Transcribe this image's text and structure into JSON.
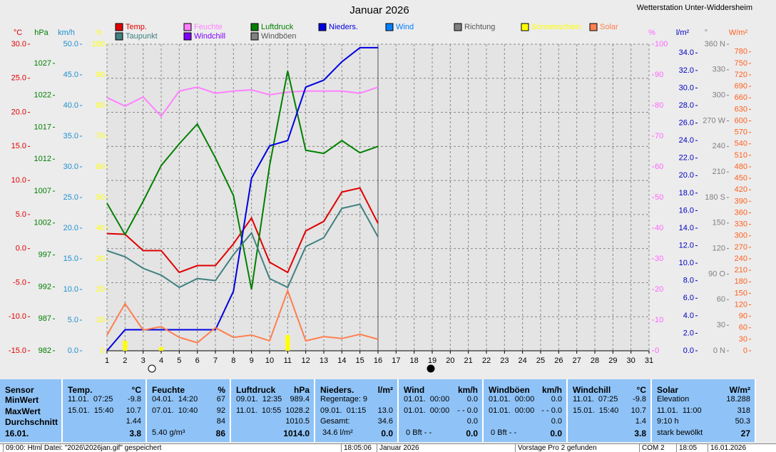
{
  "window": {
    "station": "Wetterstation Unter-Widdersheim"
  },
  "chart_data": {
    "type": "line",
    "title": "Januar 2026",
    "x": [
      1,
      2,
      3,
      4,
      5,
      6,
      7,
      8,
      9,
      10,
      11,
      12,
      13,
      14,
      15,
      16
    ],
    "xlim": [
      1,
      31
    ],
    "xticks": [
      1,
      2,
      3,
      4,
      5,
      6,
      7,
      8,
      9,
      10,
      11,
      12,
      13,
      14,
      15,
      16,
      17,
      18,
      19,
      20,
      21,
      22,
      23,
      24,
      25,
      26,
      27,
      28,
      29,
      30,
      31
    ],
    "grid": true,
    "axes": [
      {
        "label": "°C",
        "color": "#e00000",
        "ylim": [
          -15,
          30
        ],
        "yticks": [
          {
            "value": 30,
            "label": "30.0"
          },
          {
            "value": 25,
            "label": "25.0"
          },
          {
            "value": 20,
            "label": "20.0"
          },
          {
            "value": 15,
            "label": "15.0"
          },
          {
            "value": 10,
            "label": "10.0"
          },
          {
            "value": 5,
            "label": "5.0"
          },
          {
            "value": 0,
            "label": "0.0"
          },
          {
            "value": -5,
            "label": "-5.0"
          },
          {
            "value": -10,
            "label": "-10.0"
          },
          {
            "value": -15,
            "label": "-15.0"
          }
        ]
      },
      {
        "label": "hPa",
        "color": "#008000",
        "ylim": [
          982,
          1030
        ],
        "yticks": [
          982,
          987,
          992,
          997,
          1002,
          1007,
          1012,
          1017,
          1022,
          1027
        ]
      },
      {
        "label": "km/h",
        "color": "#1e8fd0",
        "ylim": [
          0,
          50
        ],
        "yticks": [
          {
            "value": 0,
            "label": "0.0"
          },
          {
            "value": 5,
            "label": "5.0"
          },
          {
            "value": 10,
            "label": "10.0"
          },
          {
            "value": 15,
            "label": "15.0"
          },
          {
            "value": 20,
            "label": "20.0"
          },
          {
            "value": 25,
            "label": "25.0"
          },
          {
            "value": 30,
            "label": "30.0"
          },
          {
            "value": 35,
            "label": "35.0"
          },
          {
            "value": 40,
            "label": "40.0"
          },
          {
            "value": 45,
            "label": "45.0"
          },
          {
            "value": 50,
            "label": "50.0"
          }
        ]
      },
      {
        "label": "h",
        "color": "#ffff00",
        "ylim": [
          0,
          100
        ],
        "yticks": [
          0,
          10,
          20,
          30,
          40,
          50,
          60,
          70,
          80,
          90,
          100
        ]
      },
      {
        "label": "%",
        "color": "#ff66ff",
        "ylim": [
          0,
          100
        ],
        "yticks": [
          0,
          10,
          20,
          30,
          40,
          50,
          60,
          70,
          80,
          90,
          100
        ]
      },
      {
        "label": "l/m²",
        "color": "#0000c0",
        "ylim": [
          0,
          35
        ],
        "yticks": [
          {
            "value": 0,
            "label": "0.0"
          },
          {
            "value": 2,
            "label": "2.0"
          },
          {
            "value": 4,
            "label": "4.0"
          },
          {
            "value": 6,
            "label": "6.0"
          },
          {
            "value": 8,
            "label": "8.0"
          },
          {
            "value": 10,
            "label": "10.0"
          },
          {
            "value": 12,
            "label": "12.0"
          },
          {
            "value": 14,
            "label": "14.0"
          },
          {
            "value": 16,
            "label": "16.0"
          },
          {
            "value": 18,
            "label": "18.0"
          },
          {
            "value": 20,
            "label": "20.0"
          },
          {
            "value": 22,
            "label": "22.0"
          },
          {
            "value": 24,
            "label": "24.0"
          },
          {
            "value": 26,
            "label": "26.0"
          },
          {
            "value": 28,
            "label": "28.0"
          },
          {
            "value": 30,
            "label": "30.0"
          },
          {
            "value": 32,
            "label": "32.0"
          },
          {
            "value": 34,
            "label": "34.0"
          }
        ]
      },
      {
        "label": "°",
        "color": "#808080",
        "ylim": [
          0,
          360
        ],
        "yticks": [
          {
            "value": 0,
            "label": "0 N"
          },
          30,
          60,
          {
            "value": 90,
            "label": "90 O"
          },
          120,
          150,
          {
            "value": 180,
            "label": "180 S"
          },
          210,
          240,
          {
            "value": 270,
            "label": "270 W"
          },
          300,
          330,
          {
            "value": 360,
            "label": "360 N"
          }
        ]
      },
      {
        "label": "W/m²",
        "color": "#ff6020",
        "ylim": [
          0,
          800
        ],
        "yticks": [
          0,
          30,
          60,
          90,
          120,
          150,
          180,
          210,
          240,
          270,
          300,
          330,
          360,
          390,
          420,
          450,
          480,
          510,
          540,
          570,
          600,
          630,
          660,
          690,
          720,
          750,
          780
        ]
      }
    ],
    "series": [
      {
        "name": "Temp.",
        "color": "#e00000",
        "axis": 0,
        "values": [
          2.2,
          2.1,
          -0.3,
          -0.3,
          -3.5,
          -2.5,
          -2.5,
          0.7,
          4.5,
          -2.0,
          -3.5,
          2.6,
          4.0,
          8.3,
          8.9,
          3.7
        ]
      },
      {
        "name": "Feuchte",
        "color": "#ff80ff",
        "axis": 4,
        "values": [
          82.6,
          79.8,
          82.8,
          76.5,
          84.7,
          86,
          84,
          84.7,
          85.1,
          83.5,
          84.4,
          84.7,
          84.7,
          84.7,
          84,
          86
        ]
      },
      {
        "name": "Luftdruck",
        "color": "#008000",
        "axis": 1,
        "values": [
          1005.1,
          1000.2,
          1005.4,
          1011.0,
          1014.4,
          1017.5,
          1012.2,
          1006.3,
          991.6,
          1011.0,
          1025.8,
          1013.4,
          1012.9,
          1014.9,
          1013.0,
          1014.0
        ]
      },
      {
        "name": "Nieders.",
        "color": "#0000e0",
        "axis": 5,
        "values": [
          0,
          2.4,
          2.4,
          2.4,
          2.4,
          2.4,
          2.4,
          6.8,
          19.7,
          23.4,
          24.0,
          30.1,
          30.9,
          33.0,
          34.6,
          34.6
        ]
      },
      {
        "name": "Wind",
        "color": "#0080ff"
      },
      {
        "name": "Richtung",
        "color": "#808080"
      },
      {
        "name": "Sonnenschein",
        "color": "#ffff00",
        "axis": 3,
        "type": "bar",
        "values": [
          0,
          3.3,
          0,
          1.2,
          0,
          0,
          0,
          0,
          0,
          0,
          5.1,
          0,
          0,
          0,
          0,
          0
        ]
      },
      {
        "name": "Solar",
        "color": "#ff7f50",
        "axis": 7,
        "values": [
          41,
          123,
          54,
          63,
          35,
          21,
          60,
          35,
          41,
          26,
          157,
          26,
          37,
          32,
          43,
          30
        ]
      },
      {
        "name": "Taupunkt",
        "color": "#408080",
        "axis": 0,
        "values": [
          -0.3,
          -1.2,
          -2.9,
          -3.9,
          -5.7,
          -4.4,
          -4.7,
          -0.9,
          2.3,
          -4.4,
          -5.7,
          0.3,
          1.6,
          5.9,
          6.5,
          1.7
        ]
      },
      {
        "name": "Windchill",
        "color": "#8000ff"
      },
      {
        "name": "Windböen",
        "color": "#808080"
      }
    ]
  },
  "table": {
    "columns": [
      {
        "header": "Sensor",
        "rows": [
          {
            "l": "MinWert"
          },
          {
            "l": "MaxWert"
          },
          {
            "l": "Durchschnitt"
          },
          {
            "l": "16.01."
          }
        ]
      },
      {
        "header": "Temp.",
        "unit": "°C",
        "rows": [
          {
            "l": "11.01.  07:25",
            "r": "-9.8"
          },
          {
            "l": "15.01.  15:40",
            "r": "10.7"
          },
          {
            "r": "1.44"
          },
          {
            "r": "3.8"
          }
        ]
      },
      {
        "header": "Feuchte",
        "unit": "%",
        "rows": [
          {
            "l": "04.01.  14:20",
            "r": "67"
          },
          {
            "l": "07.01.  10:40",
            "r": "92"
          },
          {
            "r": "84"
          },
          {
            "l": "5.40 g/m³",
            "r": "86"
          }
        ]
      },
      {
        "header": "Luftdruck",
        "unit": "hPa",
        "rows": [
          {
            "l": "09.01.  12:35",
            "r": "989.4"
          },
          {
            "l": "11.01.  10:55",
            "r": "1028.2"
          },
          {
            "r": "1010.5"
          },
          {
            "r": "1014.0"
          }
        ]
      },
      {
        "header": "Nieders.",
        "unit": "l/m²",
        "rows": [
          {
            "l": "Regentage: 9"
          },
          {
            "l": "09.01.  01:15",
            "r": "13.0"
          },
          {
            "l": "Gesamt:",
            "r": "34.6"
          },
          {
            "l": " 34.6 l/m²",
            "r": "0.0"
          }
        ]
      },
      {
        "header": "Wind",
        "unit": "km/h",
        "rows": [
          {
            "l": "01.01.  00:00",
            "r": "0.0"
          },
          {
            "l": "01.01.  00:00",
            "r": "- - 0.0"
          },
          {
            "r": "0.0"
          },
          {
            "l": " 0 Bft - -",
            "r": "0.0"
          }
        ]
      },
      {
        "header": "Windböen",
        "unit": "km/h",
        "rows": [
          {
            "l": "01.01.  00:00",
            "r": "0.0"
          },
          {
            "l": "01.01.  00:00",
            "r": "- - 0.0"
          },
          {
            "r": "0.0"
          },
          {
            "l": " 0 Bft - -",
            "r": "0.0"
          }
        ]
      },
      {
        "header": "Windchill",
        "unit": "°C",
        "rows": [
          {
            "l": "11.01.  07:25",
            "r": "-9.8"
          },
          {
            "l": "15.01.  15:40",
            "r": "10.7"
          },
          {
            "r": "1.4"
          },
          {
            "r": "3.8"
          }
        ]
      },
      {
        "header": "Solar",
        "unit": "W/m²",
        "rows": [
          {
            "l": "Elevation",
            "r": "18.288"
          },
          {
            "l": "11.01.  11:00",
            "r": "318"
          },
          {
            "l": "9:10 h",
            "r": "50.3"
          },
          {
            "l": "stark bewölkt",
            "r": "27"
          }
        ]
      }
    ]
  },
  "status": [
    "09:00: Html Datei: \"2026\\2026jan.gif\" gespeichert",
    "18:05:06",
    "Januar 2026",
    "Vorstage Pro 2 gefunden",
    "COM 2",
    "18:05",
    "16.01.2026"
  ]
}
